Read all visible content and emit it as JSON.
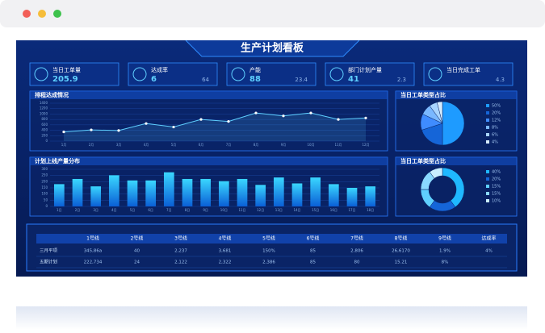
{
  "header": {
    "title": "生产计划看板"
  },
  "kpis": [
    {
      "label": "当日工单量",
      "value": 205.9
    },
    {
      "label": "达成率",
      "value": 6,
      "sub": 64
    },
    {
      "label": "产能",
      "value": 88,
      "sub": 23.4
    },
    {
      "label": "部门计划产量",
      "value": 41,
      "sub": 2.3
    },
    {
      "label": "当日完成工单",
      "sub": 4.3
    }
  ],
  "chart_data": [
    {
      "type": "line",
      "title": "排程达成情况",
      "categories": [
        "1月",
        "2月",
        "3月",
        "4月",
        "5月",
        "6月",
        "7月",
        "8月",
        "9月",
        "10月",
        "11月",
        "12月"
      ],
      "values": [
        340,
        415,
        390,
        650,
        520,
        800,
        725,
        1040,
        930,
        1040,
        800,
        855
      ],
      "color": "#5fd0ff",
      "ylim": [
        0,
        1400
      ],
      "yticks": [
        0,
        200,
        400,
        600,
        800,
        1000,
        1200,
        1400
      ],
      "grid": true
    },
    {
      "type": "pie",
      "title": "当日工单类型占比",
      "values": [
        50,
        20,
        12,
        8,
        6,
        4
      ],
      "value_labels": [
        "50%",
        "20%",
        "12%",
        "8%",
        "6%",
        "4%"
      ],
      "colors": [
        "#1e9bff",
        "#1565d8",
        "#3f8cff",
        "#7ab8ff",
        "#a8d4ff",
        "#d6ecff"
      ]
    },
    {
      "type": "bar",
      "title": "计划上线产量分布",
      "categories": [
        "1日",
        "2日",
        "3日",
        "4日",
        "5日",
        "6日",
        "7日",
        "8日",
        "9日",
        "10日",
        "11日",
        "12日",
        "13日",
        "14日",
        "15日",
        "16日",
        "17日",
        "18日"
      ],
      "values": [
        180,
        222,
        162,
        252,
        210,
        210,
        276,
        222,
        222,
        204,
        222,
        174,
        234,
        186,
        234,
        180,
        150,
        162
      ],
      "color": "#1fb8ff",
      "ylim": [
        0,
        300
      ],
      "yticks": [
        0,
        50,
        100,
        150,
        200,
        250,
        300
      ],
      "grid": true
    },
    {
      "type": "donut",
      "title": "当日工单类型占比",
      "values": [
        40,
        20,
        15,
        15,
        10
      ],
      "value_labels": [
        "40%",
        "20%",
        "15%",
        "15%",
        "10%"
      ],
      "colors": [
        "#1fb8ff",
        "#1565d8",
        "#5fd0ff",
        "#8ad9ff",
        "#c9eeff"
      ]
    }
  ],
  "table": {
    "header": [
      "1号线",
      "2号线",
      "3号线",
      "4号线",
      "5号线",
      "6号线",
      "7号线",
      "8号线",
      "9号线",
      "达成率"
    ],
    "rows": [
      [
        "三月平项",
        "345,86a",
        "40",
        "2,237",
        "3,681",
        "150%",
        "85",
        "2,806",
        "26,6170",
        "1.9%",
        "4%"
      ],
      [
        "五期计划",
        "222,734",
        "24",
        "2,122",
        "2,322",
        "2,386",
        "85",
        "80",
        "15.21",
        "8%"
      ]
    ]
  }
}
